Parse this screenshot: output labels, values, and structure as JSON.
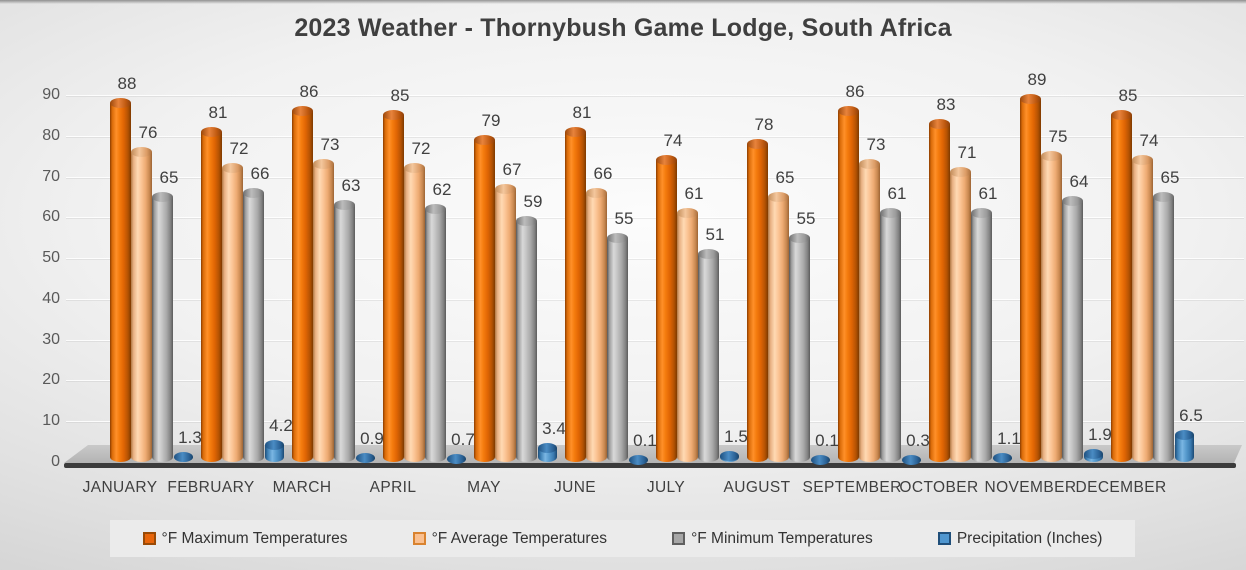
{
  "title": "2023 Weather - Thornybush Game Lodge, South Africa",
  "chart_data": {
    "type": "bar",
    "subtype": "3d-cylinder",
    "title": "2023 Weather - Thornybush Game Lodge, South Africa",
    "categories": [
      "JANUARY",
      "FEBRUARY",
      "MARCH",
      "APRIL",
      "MAY",
      "JUNE",
      "JULY",
      "AUGUST",
      "SEPTEMBER",
      "OCTOBER",
      "NOVEMBER",
      "DECEMBER"
    ],
    "series": [
      {
        "key": "max",
        "name": "°F Maximum Temperatures",
        "color": "#e36c09",
        "values": [
          88,
          81,
          86,
          85,
          79,
          81,
          74,
          78,
          86,
          83,
          89,
          85
        ]
      },
      {
        "key": "avg",
        "name": "°F Average Temperatures",
        "color": "#fac090",
        "values": [
          76,
          72,
          73,
          72,
          67,
          66,
          61,
          65,
          73,
          71,
          75,
          74
        ]
      },
      {
        "key": "min",
        "name": "°F Minimum Temperatures",
        "color": "#a6a6a6",
        "values": [
          65,
          66,
          63,
          62,
          59,
          55,
          51,
          55,
          61,
          61,
          64,
          65
        ]
      },
      {
        "key": "precip",
        "name": "Precipitation (Inches)",
        "color": "#4f96cf",
        "values": [
          1.3,
          4.2,
          0.9,
          0.7,
          3.4,
          0.1,
          1.5,
          0.1,
          0.3,
          1.1,
          1.9,
          6.5
        ]
      }
    ],
    "ylim": [
      0,
      90
    ],
    "yticks": [
      0,
      10,
      20,
      30,
      40,
      50,
      60,
      70,
      80,
      90
    ],
    "grid": true,
    "data_labels": true,
    "legend_position": "bottom"
  }
}
